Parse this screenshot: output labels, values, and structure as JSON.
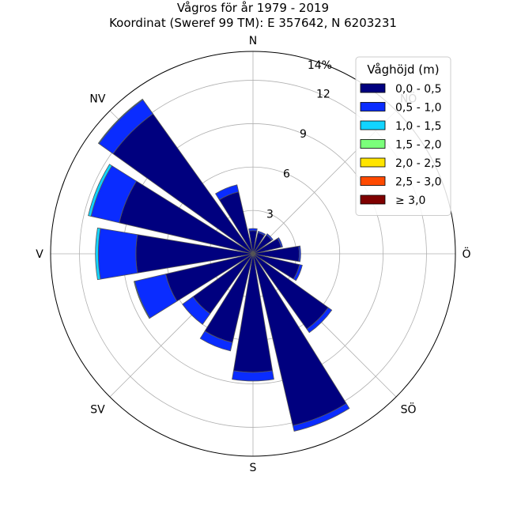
{
  "chart_data": {
    "type": "windrose",
    "title_line1": "Vågros för år 1979 - 2019",
    "title_line2": "Koordinat (Sweref 99 TM): E 357642, N 6203231",
    "directions": [
      "N",
      "NNÖ",
      "NÖ",
      "ÖNÖ",
      "Ö",
      "ÖSÖ",
      "SÖ",
      "SSÖ",
      "S",
      "SSV",
      "SV",
      "VSV",
      "V",
      "VNV",
      "NV",
      "NNV"
    ],
    "compass_labels": [
      "N",
      "NÖ",
      "Ö",
      "SÖ",
      "S",
      "SV",
      "V",
      "NV"
    ],
    "radial_ticks": [
      3,
      6,
      9,
      12
    ],
    "radial_max": 14,
    "radial_max_label": "14%",
    "legend_title": "Våghöjd (m)",
    "legend_placement": "top-right",
    "bins": [
      {
        "label": "0,0 - 0,5",
        "color": "#00007f"
      },
      {
        "label": "0,5 - 1,0",
        "color": "#0a2cff"
      },
      {
        "label": "1,0 - 1,5",
        "color": "#12d4ff"
      },
      {
        "label": "1,5 - 2,0",
        "color": "#7bff7b"
      },
      {
        "label": "2,0 - 2,5",
        "color": "#ffe500"
      },
      {
        "label": "2,5 - 3,0",
        "color": "#ff4a00"
      },
      {
        "label": "≥ 3,0",
        "color": "#7f0000"
      }
    ],
    "series_values": [
      [
        1.6,
        0.15,
        0,
        0,
        0,
        0,
        0
      ],
      [
        1.5,
        0.1,
        0,
        0,
        0,
        0,
        0
      ],
      [
        1.6,
        0.1,
        0,
        0,
        0,
        0,
        0
      ],
      [
        2.0,
        0.1,
        0,
        0,
        0,
        0,
        0
      ],
      [
        3.2,
        0.1,
        0,
        0,
        0,
        0,
        0
      ],
      [
        3.3,
        0.2,
        0,
        0,
        0,
        0,
        0
      ],
      [
        6.4,
        0.3,
        0,
        0,
        0,
        0,
        0
      ],
      [
        12.2,
        0.4,
        0,
        0,
        0,
        0,
        0
      ],
      [
        8.2,
        0.6,
        0,
        0,
        0,
        0,
        0
      ],
      [
        6.3,
        0.6,
        0,
        0,
        0,
        0,
        0
      ],
      [
        5.1,
        0.9,
        0,
        0,
        0,
        0,
        0
      ],
      [
        6.2,
        2.2,
        0.05,
        0,
        0,
        0,
        0
      ],
      [
        8.1,
        2.6,
        0.2,
        0,
        0,
        0,
        0
      ],
      [
        9.5,
        2.0,
        0.2,
        0,
        0,
        0,
        0
      ],
      [
        11.9,
        1.2,
        0.05,
        0,
        0,
        0,
        0
      ],
      [
        4.4,
        0.5,
        0,
        0,
        0,
        0,
        0
      ]
    ],
    "grid": true
  }
}
